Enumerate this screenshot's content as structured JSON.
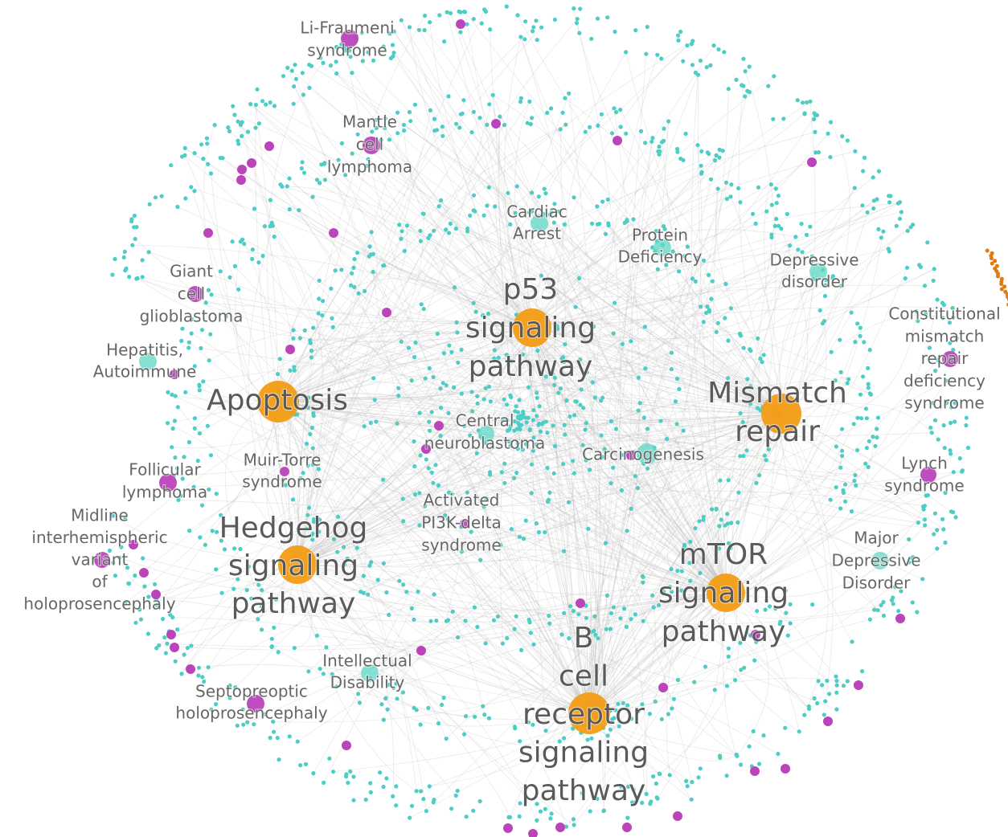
{
  "nodes": [
    {
      "lines": [
        "p53",
        "signaling",
        "pathway"
      ]
    },
    {
      "lines": [
        "Apoptosis"
      ]
    },
    {
      "lines": [
        "Mismatch",
        "repair"
      ]
    },
    {
      "lines": [
        "Hedgehog",
        "signaling",
        "pathway"
      ]
    },
    {
      "lines": [
        "mTOR",
        "signaling",
        "pathway"
      ]
    },
    {
      "lines": [
        "B",
        "cell",
        "receptor",
        "signaling",
        "pathway"
      ]
    },
    {
      "lines": [
        "Li-Fraumeni",
        "syndrome"
      ]
    },
    {
      "lines": [
        "Mantle",
        "cell",
        "lymphoma"
      ]
    },
    {
      "lines": [
        "Giant",
        "cell",
        "glioblastoma"
      ]
    },
    {
      "lines": [
        "Hepatitis,",
        "Autoimmune"
      ]
    },
    {
      "lines": [
        "Follicular",
        "lymphoma"
      ]
    },
    {
      "lines": [
        "Midline",
        "interhemispheric",
        "variant",
        "of",
        "holoprosencephaly"
      ]
    },
    {
      "lines": [
        "Muir-Torre",
        "syndrome"
      ]
    },
    {
      "lines": [
        "Septopreoptic",
        "holoprosencephaly"
      ]
    },
    {
      "lines": [
        "Intellectual",
        "Disability"
      ]
    },
    {
      "lines": [
        "Activated",
        "PI3K-delta",
        "syndrome"
      ]
    },
    {
      "lines": [
        "Central",
        "neuroblastoma"
      ]
    },
    {
      "lines": [
        "Cardiac",
        "Arrest"
      ]
    },
    {
      "lines": [
        "Protein",
        "Deficiency"
      ]
    },
    {
      "lines": [
        "Depressive",
        "disorder"
      ]
    },
    {
      "lines": [
        "Carcinogenesis"
      ]
    },
    {
      "lines": [
        "Constitutional",
        "mismatch",
        "repair",
        "deficiency",
        "syndrome"
      ]
    },
    {
      "lines": [
        "Lynch",
        "syndrome"
      ]
    },
    {
      "lines": [
        "Major",
        "Depressive",
        "Disorder"
      ]
    }
  ]
}
